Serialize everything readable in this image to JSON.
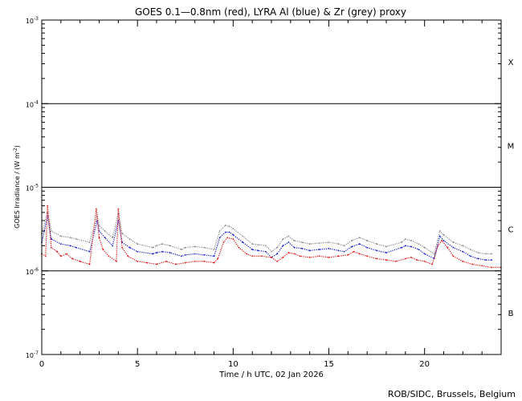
{
  "chart_data": {
    "type": "line",
    "title": "GOES 0.1—0.8nm (red), LYRA Al (blue) & Zr (grey) proxy",
    "xlabel": "Time / h UTC, 02 Jan 2026",
    "ylabel_parts": {
      "main": "GOES Irradiance / (W m",
      "sup": "-2",
      "end": ")"
    },
    "credit": "ROB/SIDC, Brussels, Belgium",
    "xlim": [
      0,
      24
    ],
    "ylim": [
      1e-07,
      0.001
    ],
    "y_scale": "log",
    "x_ticks": [
      0,
      5,
      10,
      15,
      20
    ],
    "y_ticks": [
      {
        "value": 0.001,
        "base": "10",
        "exp": "-3"
      },
      {
        "value": 0.0001,
        "base": "10",
        "exp": "-4"
      },
      {
        "value": 1e-05,
        "base": "10",
        "exp": "-5"
      },
      {
        "value": 1e-06,
        "base": "10",
        "exp": "-6"
      },
      {
        "value": 1e-07,
        "base": "10",
        "exp": "-7"
      }
    ],
    "flare_classes": [
      {
        "label": "X",
        "y": 0.000316
      },
      {
        "label": "M",
        "y": 3.16e-05
      },
      {
        "label": "C",
        "y": 3.16e-06
      },
      {
        "label": "B",
        "y": 3.16e-07
      }
    ],
    "threshold_lines": [
      0.0001,
      1e-05,
      1e-06
    ],
    "series": [
      {
        "name": "GOES 0.1—0.8nm",
        "color": "#e01010",
        "x": [
          0.0,
          0.2,
          0.3,
          0.5,
          0.8,
          1.0,
          1.3,
          1.6,
          2.0,
          2.5,
          2.85,
          3.0,
          3.2,
          3.5,
          3.9,
          4.0,
          4.2,
          4.5,
          5.0,
          5.5,
          6.0,
          6.5,
          7.0,
          7.5,
          8.0,
          8.5,
          9.0,
          9.2,
          9.5,
          9.7,
          10.0,
          10.3,
          10.7,
          11.0,
          11.5,
          12.0,
          12.3,
          12.6,
          12.9,
          13.2,
          13.5,
          14.0,
          14.5,
          15.0,
          15.5,
          16.0,
          16.3,
          16.6,
          17.0,
          17.5,
          18.0,
          18.5,
          19.0,
          19.3,
          19.6,
          20.0,
          20.4,
          20.7,
          20.9,
          21.2,
          21.5,
          22.0,
          22.5,
          23.0,
          23.5,
          24.0
        ],
        "y": [
          1.6e-06,
          1.5e-06,
          6e-06,
          1.9e-06,
          1.7e-06,
          1.5e-06,
          1.6e-06,
          1.4e-06,
          1.3e-06,
          1.2e-06,
          5.5e-06,
          2.5e-06,
          1.8e-06,
          1.5e-06,
          1.3e-06,
          5.5e-06,
          1.9e-06,
          1.5e-06,
          1.3e-06,
          1.25e-06,
          1.2e-06,
          1.3e-06,
          1.2e-06,
          1.25e-06,
          1.3e-06,
          1.3e-06,
          1.25e-06,
          1.4e-06,
          2.2e-06,
          2.5e-06,
          2.4e-06,
          1.9e-06,
          1.6e-06,
          1.5e-06,
          1.5e-06,
          1.45e-06,
          1.3e-06,
          1.45e-06,
          1.65e-06,
          1.6e-06,
          1.5e-06,
          1.45e-06,
          1.5e-06,
          1.45e-06,
          1.5e-06,
          1.55e-06,
          1.7e-06,
          1.6e-06,
          1.5e-06,
          1.4e-06,
          1.35e-06,
          1.3e-06,
          1.4e-06,
          1.45e-06,
          1.35e-06,
          1.3e-06,
          1.2e-06,
          2e-06,
          2.3e-06,
          1.9e-06,
          1.5e-06,
          1.3e-06,
          1.2e-06,
          1.15e-06,
          1.1e-06,
          1.1e-06
        ]
      },
      {
        "name": "LYRA Al",
        "color": "#1018cc",
        "x": [
          0.0,
          0.3,
          0.5,
          1.0,
          1.5,
          1.8,
          2.5,
          2.9,
          3.0,
          3.3,
          3.7,
          4.0,
          4.2,
          4.6,
          5.0,
          5.8,
          6.0,
          6.3,
          6.7,
          7.3,
          7.5,
          8.0,
          8.5,
          9.0,
          9.3,
          9.6,
          9.8,
          10.0,
          10.5,
          11.0,
          11.3,
          11.7,
          12.0,
          12.3,
          12.6,
          12.9,
          13.2,
          13.6,
          14.0,
          14.5,
          15.0,
          15.5,
          15.8,
          16.2,
          16.6,
          17.0,
          17.5,
          18.0,
          18.8,
          19.0,
          19.3,
          19.7,
          20.0,
          20.5,
          20.8,
          21.0,
          21.5,
          22.0,
          22.4,
          22.8,
          23.2,
          23.5
        ],
        "y": [
          2.2e-06,
          4.5e-06,
          2.4e-06,
          2.1e-06,
          2e-06,
          1.9e-06,
          1.7e-06,
          4e-06,
          3e-06,
          2.5e-06,
          2e-06,
          4e-06,
          2.2e-06,
          1.9e-06,
          1.7e-06,
          1.6e-06,
          1.65e-06,
          1.7e-06,
          1.65e-06,
          1.5e-06,
          1.55e-06,
          1.6e-06,
          1.55e-06,
          1.5e-06,
          2.5e-06,
          2.9e-06,
          2.9e-06,
          2.7e-06,
          2.2e-06,
          1.8e-06,
          1.75e-06,
          1.7e-06,
          1.45e-06,
          1.6e-06,
          2e-06,
          2.2e-06,
          1.9e-06,
          1.85e-06,
          1.75e-06,
          1.8e-06,
          1.85e-06,
          1.75e-06,
          1.7e-06,
          1.95e-06,
          2.1e-06,
          1.9e-06,
          1.75e-06,
          1.65e-06,
          1.9e-06,
          2e-06,
          1.95e-06,
          1.8e-06,
          1.6e-06,
          1.4e-06,
          2.6e-06,
          2.3e-06,
          1.9e-06,
          1.7e-06,
          1.5e-06,
          1.4e-06,
          1.35e-06,
          1.35e-06
        ]
      },
      {
        "name": "LYRA Zr",
        "color": "#888888",
        "x": [
          0.0,
          0.3,
          0.5,
          1.0,
          1.5,
          1.8,
          2.5,
          2.9,
          3.0,
          3.3,
          3.7,
          4.0,
          4.2,
          4.6,
          5.0,
          5.8,
          6.0,
          6.3,
          6.7,
          7.3,
          7.5,
          8.0,
          8.5,
          9.0,
          9.3,
          9.6,
          9.8,
          10.0,
          10.5,
          11.0,
          11.3,
          11.7,
          12.0,
          12.3,
          12.6,
          12.9,
          13.2,
          13.6,
          14.0,
          14.5,
          15.0,
          15.5,
          15.8,
          16.2,
          16.6,
          17.0,
          17.5,
          18.0,
          18.8,
          19.0,
          19.3,
          19.7,
          20.0,
          20.5,
          20.8,
          21.0,
          21.5,
          22.0,
          22.4,
          22.8,
          23.2,
          23.5
        ],
        "y": [
          2.8e-06,
          5e-06,
          3e-06,
          2.6e-06,
          2.5e-06,
          2.4e-06,
          2.2e-06,
          4.5e-06,
          3.5e-06,
          3e-06,
          2.5e-06,
          4.8e-06,
          2.8e-06,
          2.4e-06,
          2.1e-06,
          1.9e-06,
          2e-06,
          2.1e-06,
          2e-06,
          1.8e-06,
          1.9e-06,
          1.95e-06,
          1.9e-06,
          1.8e-06,
          3e-06,
          3.5e-06,
          3.4e-06,
          3.2e-06,
          2.6e-06,
          2.1e-06,
          2.05e-06,
          2e-06,
          1.7e-06,
          1.9e-06,
          2.4e-06,
          2.6e-06,
          2.3e-06,
          2.2e-06,
          2.1e-06,
          2.15e-06,
          2.2e-06,
          2.1e-06,
          2e-06,
          2.3e-06,
          2.5e-06,
          2.3e-06,
          2.1e-06,
          1.95e-06,
          2.2e-06,
          2.4e-06,
          2.3e-06,
          2.1e-06,
          1.9e-06,
          1.6e-06,
          3e-06,
          2.7e-06,
          2.2e-06,
          2e-06,
          1.8e-06,
          1.65e-06,
          1.6e-06,
          1.6e-06
        ]
      }
    ]
  }
}
